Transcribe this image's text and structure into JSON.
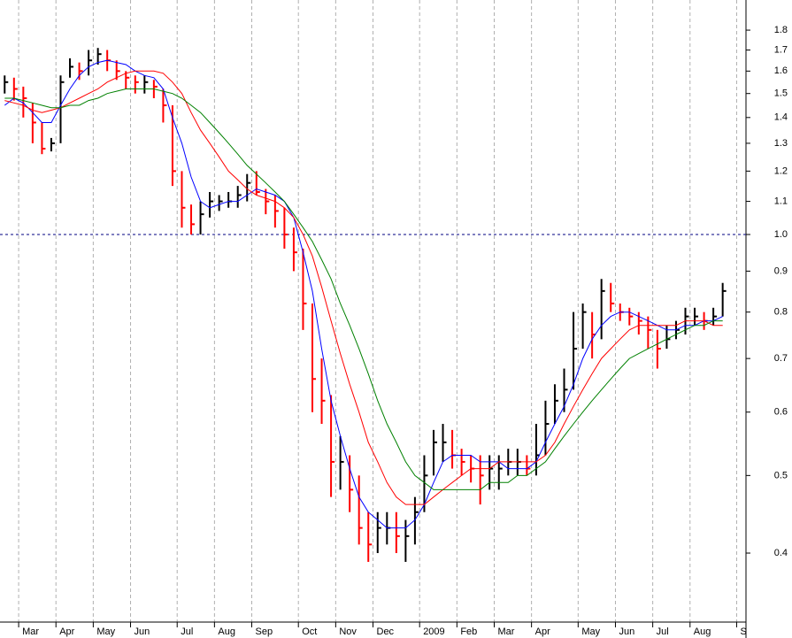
{
  "chart_data": {
    "type": "hlc",
    "categories": [
      null,
      null,
      "Mar",
      null,
      null,
      null,
      "Apr",
      null,
      null,
      null,
      "May",
      null,
      null,
      null,
      "Jun",
      null,
      null,
      null,
      null,
      "Jul",
      null,
      null,
      null,
      "Aug",
      null,
      null,
      null,
      "Sep",
      null,
      null,
      null,
      null,
      "Oct",
      null,
      null,
      null,
      "Nov",
      null,
      null,
      null,
      "Dec",
      null,
      null,
      null,
      null,
      "2009",
      null,
      null,
      null,
      "Feb",
      null,
      null,
      null,
      "Mar",
      null,
      null,
      null,
      "Apr",
      null,
      null,
      null,
      null,
      "May",
      null,
      null,
      null,
      "Jun",
      null,
      null,
      null,
      "Jul",
      null,
      null,
      null,
      "Aug",
      null,
      null,
      null,
      null,
      "S"
    ],
    "high": [
      1.58,
      1.57,
      1.53,
      1.46,
      1.38,
      1.32,
      1.58,
      1.66,
      1.64,
      1.7,
      1.71,
      1.7,
      1.65,
      1.6,
      1.58,
      1.58,
      1.56,
      1.52,
      1.45,
      1.2,
      1.09,
      1.1,
      1.13,
      1.12,
      1.13,
      1.15,
      1.19,
      1.2,
      1.14,
      1.12,
      1.08,
      1.02,
      0.96,
      0.82,
      0.7,
      0.63,
      0.56,
      0.53,
      0.5,
      0.45,
      0.45,
      0.45,
      0.45,
      0.44,
      0.47,
      0.53,
      0.57,
      0.58,
      0.57,
      0.54,
      0.53,
      0.53,
      0.53,
      0.53,
      0.54,
      0.54,
      0.53,
      0.58,
      0.62,
      0.65,
      0.68,
      0.8,
      0.82,
      0.8,
      0.88,
      0.87,
      0.82,
      0.81,
      0.8,
      0.79,
      0.76,
      0.77,
      0.78,
      0.81,
      0.81,
      0.8,
      0.81,
      0.87,
      null,
      null
    ],
    "low": [
      1.5,
      1.47,
      1.4,
      1.3,
      1.26,
      1.27,
      1.3,
      1.57,
      1.56,
      1.58,
      1.63,
      1.6,
      1.56,
      1.52,
      1.5,
      1.5,
      1.48,
      1.38,
      1.15,
      1.02,
      1.0,
      1.0,
      1.05,
      1.07,
      1.08,
      1.08,
      1.1,
      1.12,
      1.06,
      1.02,
      0.96,
      0.9,
      0.76,
      0.6,
      0.58,
      0.47,
      0.48,
      0.45,
      0.41,
      0.39,
      0.4,
      0.41,
      0.4,
      0.39,
      0.41,
      0.45,
      0.5,
      0.52,
      0.51,
      0.5,
      0.49,
      0.46,
      0.48,
      0.48,
      0.5,
      0.5,
      0.5,
      0.5,
      0.53,
      0.58,
      0.6,
      0.64,
      0.72,
      0.7,
      0.74,
      0.8,
      0.78,
      0.77,
      0.75,
      0.72,
      0.68,
      0.72,
      0.74,
      0.75,
      0.77,
      0.76,
      0.77,
      0.79,
      null,
      null
    ],
    "close": [
      1.55,
      1.52,
      1.48,
      1.38,
      1.28,
      1.3,
      1.55,
      1.62,
      1.6,
      1.65,
      1.68,
      1.65,
      1.6,
      1.57,
      1.55,
      1.55,
      1.53,
      1.45,
      1.2,
      1.08,
      1.03,
      1.06,
      1.1,
      1.1,
      1.1,
      1.12,
      1.16,
      1.13,
      1.1,
      1.07,
      1.0,
      0.95,
      0.82,
      0.66,
      0.62,
      0.52,
      0.52,
      0.48,
      0.43,
      0.41,
      0.43,
      0.43,
      0.42,
      0.42,
      0.45,
      0.5,
      0.55,
      0.55,
      0.53,
      0.52,
      0.51,
      0.5,
      0.51,
      0.51,
      0.52,
      0.52,
      0.51,
      0.53,
      0.58,
      0.62,
      0.64,
      0.72,
      0.8,
      0.75,
      0.85,
      0.82,
      0.8,
      0.79,
      0.78,
      0.76,
      0.72,
      0.74,
      0.76,
      0.79,
      0.79,
      0.78,
      0.79,
      0.85,
      null,
      null
    ],
    "up_color": "#000000",
    "down_color": "#ff0000",
    "moving_averages": [
      {
        "color": "#0000ff",
        "values": [
          1.45,
          1.48,
          1.46,
          1.42,
          1.38,
          1.38,
          1.45,
          1.52,
          1.58,
          1.62,
          1.64,
          1.65,
          1.64,
          1.63,
          1.6,
          1.58,
          1.57,
          1.52,
          1.4,
          1.3,
          1.18,
          1.1,
          1.08,
          1.09,
          1.1,
          1.1,
          1.12,
          1.14,
          1.13,
          1.12,
          1.1,
          1.05,
          0.95,
          0.85,
          0.72,
          0.62,
          0.56,
          0.51,
          0.47,
          0.45,
          0.44,
          0.43,
          0.43,
          0.43,
          0.44,
          0.46,
          0.49,
          0.52,
          0.53,
          0.53,
          0.53,
          0.52,
          0.52,
          0.52,
          0.51,
          0.51,
          0.51,
          0.52,
          0.55,
          0.58,
          0.61,
          0.65,
          0.7,
          0.74,
          0.77,
          0.79,
          0.8,
          0.8,
          0.79,
          0.78,
          0.77,
          0.76,
          0.76,
          0.77,
          0.77,
          0.78,
          0.78,
          0.79,
          null,
          null
        ]
      },
      {
        "color": "#ff0000",
        "values": [
          1.47,
          1.46,
          1.45,
          1.43,
          1.42,
          1.43,
          1.44,
          1.46,
          1.48,
          1.5,
          1.52,
          1.55,
          1.57,
          1.59,
          1.6,
          1.6,
          1.6,
          1.59,
          1.55,
          1.5,
          1.42,
          1.35,
          1.3,
          1.25,
          1.2,
          1.17,
          1.14,
          1.12,
          1.11,
          1.1,
          1.08,
          1.05,
          1.0,
          0.94,
          0.86,
          0.78,
          0.71,
          0.65,
          0.6,
          0.55,
          0.52,
          0.49,
          0.47,
          0.46,
          0.46,
          0.46,
          0.47,
          0.48,
          0.49,
          0.5,
          0.51,
          0.51,
          0.51,
          0.52,
          0.52,
          0.52,
          0.52,
          0.52,
          0.53,
          0.55,
          0.58,
          0.61,
          0.64,
          0.67,
          0.7,
          0.72,
          0.74,
          0.76,
          0.77,
          0.77,
          0.77,
          0.77,
          0.77,
          0.78,
          0.78,
          0.78,
          0.77,
          0.77,
          null,
          null
        ]
      },
      {
        "color": "#008000",
        "values": [
          1.48,
          1.48,
          1.47,
          1.46,
          1.45,
          1.44,
          1.44,
          1.45,
          1.45,
          1.47,
          1.48,
          1.5,
          1.51,
          1.52,
          1.52,
          1.52,
          1.52,
          1.51,
          1.5,
          1.48,
          1.45,
          1.42,
          1.38,
          1.34,
          1.3,
          1.26,
          1.22,
          1.19,
          1.16,
          1.13,
          1.1,
          1.06,
          1.02,
          0.98,
          0.93,
          0.88,
          0.82,
          0.77,
          0.72,
          0.67,
          0.62,
          0.58,
          0.55,
          0.52,
          0.5,
          0.49,
          0.48,
          0.48,
          0.48,
          0.48,
          0.48,
          0.48,
          0.49,
          0.49,
          0.49,
          0.5,
          0.5,
          0.51,
          0.52,
          0.54,
          0.56,
          0.58,
          0.6,
          0.62,
          0.64,
          0.66,
          0.68,
          0.7,
          0.71,
          0.72,
          0.73,
          0.74,
          0.75,
          0.76,
          0.77,
          0.77,
          0.78,
          0.78,
          null,
          null
        ]
      }
    ],
    "log_scale": true,
    "ylim": [
      0.328,
      1.963
    ],
    "yticks": [
      0.4,
      0.5,
      0.6,
      0.7,
      0.8,
      0.9,
      {
        "value": 1,
        "label": "1.0"
      },
      1.1,
      1.2,
      1.3,
      1.4,
      1.5,
      1.6,
      1.7,
      1.8
    ],
    "hline": 1,
    "grid": true
  }
}
